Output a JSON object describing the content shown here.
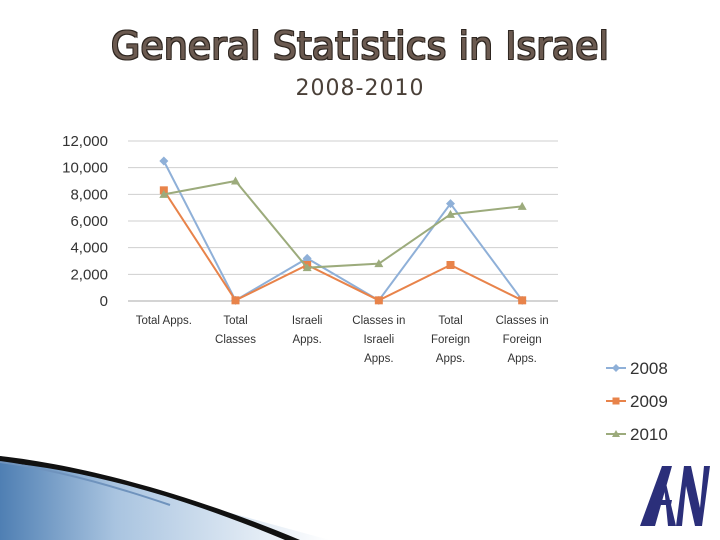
{
  "slide": {
    "title": "General Statistics in Israel",
    "subtitle": "2008-2010",
    "logo_text": "AN"
  },
  "chart_data": {
    "type": "line",
    "categories": [
      [
        "Total Apps."
      ],
      [
        "Total",
        "Classes"
      ],
      [
        "Israeli",
        "Apps."
      ],
      [
        "Classes in",
        "Israeli",
        "Apps."
      ],
      [
        "Total",
        "Foreign",
        "Apps."
      ],
      [
        "Classes in",
        "Foreign",
        "Apps."
      ]
    ],
    "ylim": [
      0,
      12000
    ],
    "yticks": [
      0,
      2000,
      4000,
      6000,
      8000,
      10000,
      12000
    ],
    "ytick_labels": [
      "0",
      "2,000",
      "4,000",
      "6,000",
      "8,000",
      "10,000",
      "12,000"
    ],
    "grid": true,
    "legend_position": "right",
    "series": [
      {
        "name": "2008",
        "color": "#8fb0d8",
        "marker": "diamond",
        "values": [
          10500,
          50,
          3200,
          50,
          7300,
          50
        ]
      },
      {
        "name": "2009",
        "color": "#e8834a",
        "marker": "square",
        "values": [
          8300,
          50,
          2700,
          50,
          2700,
          50
        ]
      },
      {
        "name": "2010",
        "color": "#9cab7c",
        "marker": "triangle",
        "values": [
          8000,
          9000,
          2500,
          2800,
          6500,
          7100
        ]
      }
    ]
  }
}
